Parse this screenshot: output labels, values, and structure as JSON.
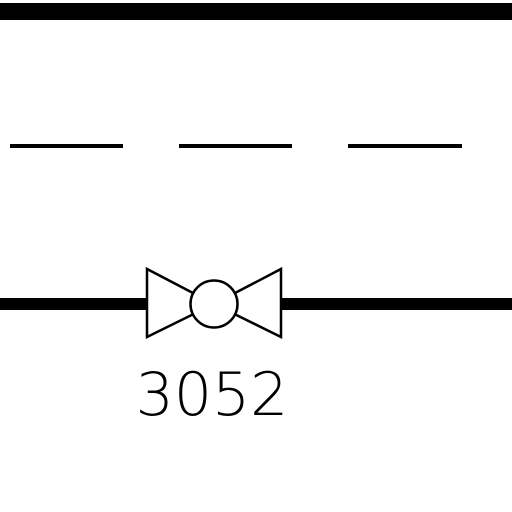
{
  "diagram": {
    "lines": [
      {
        "style": "thick"
      },
      {
        "style": "dashed"
      },
      {
        "style": "thick"
      }
    ],
    "valve": {
      "symbol": "ball-valve",
      "tag": "3052"
    },
    "colors": {
      "line": "#000000",
      "background": "#ffffff"
    }
  }
}
